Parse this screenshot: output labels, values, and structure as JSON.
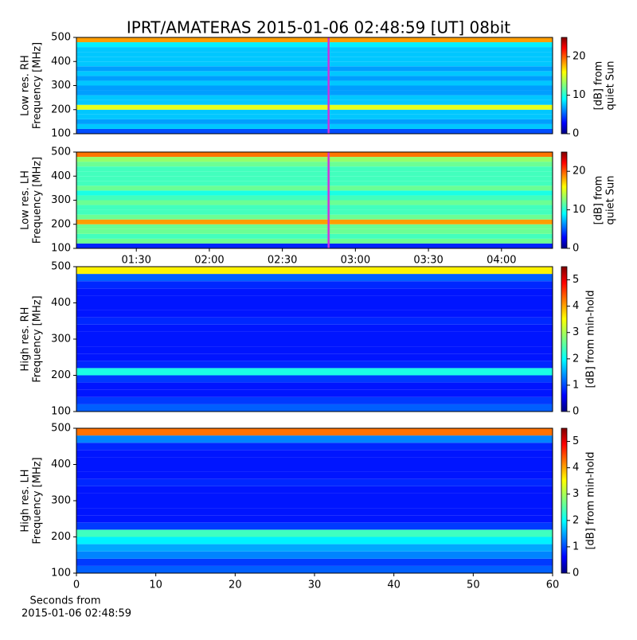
{
  "title": "IPRT/AMATERAS 2015-01-06 02:48:59 [UT]   08bit",
  "xlabel": [
    "Seconds from",
    "2015-01-06 02:48:59"
  ],
  "chart_data": [
    {
      "type": "heatmap",
      "ylabel": [
        "Low res. RH",
        "Frequency [MHz]"
      ],
      "ylim": [
        100,
        500
      ],
      "yticks": [
        100,
        200,
        300,
        400,
        500
      ],
      "ybins": [
        100,
        120,
        140,
        160,
        180,
        200,
        220,
        240,
        260,
        280,
        300,
        320,
        340,
        360,
        380,
        400,
        420,
        440,
        460,
        480,
        500
      ],
      "values": [
        5,
        8,
        7,
        8,
        8,
        15,
        8,
        8,
        7,
        7,
        8,
        7,
        8,
        7,
        8,
        8,
        8,
        8,
        9,
        18
      ],
      "xlim": [
        65.4,
        261
      ],
      "marker_x": 168.98,
      "marker_color": "#cc33dd",
      "clim": [
        0,
        25
      ],
      "cticks": [
        0,
        10,
        20
      ],
      "colorbar_label": [
        "[dB] from",
        "quiet Sun"
      ]
    },
    {
      "type": "heatmap",
      "ylabel": [
        "Low res. LH",
        "Frequency [MHz]"
      ],
      "ylim": [
        100,
        500
      ],
      "yticks": [
        100,
        200,
        300,
        400,
        500
      ],
      "ybins": [
        100,
        120,
        140,
        160,
        180,
        200,
        220,
        240,
        260,
        280,
        300,
        320,
        340,
        360,
        380,
        400,
        420,
        440,
        460,
        480,
        500
      ],
      "values": [
        4,
        12,
        11,
        12,
        12,
        18,
        12,
        11,
        11,
        12,
        11,
        10,
        12,
        11,
        11,
        11,
        11,
        12,
        13,
        19
      ],
      "xlim": [
        65.4,
        261
      ],
      "xticks": [
        {
          "value": 90,
          "label": "01:30"
        },
        {
          "value": 120,
          "label": "02:00"
        },
        {
          "value": 150,
          "label": "02:30"
        },
        {
          "value": 180,
          "label": "03:00"
        },
        {
          "value": 210,
          "label": "03:30"
        },
        {
          "value": 240,
          "label": "04:00"
        }
      ],
      "marker_x": 168.98,
      "marker_color": "#cc33dd",
      "clim": [
        0,
        25
      ],
      "cticks": [
        0,
        10,
        20
      ],
      "colorbar_label": [
        "[dB] from",
        "quiet Sun"
      ]
    },
    {
      "type": "heatmap",
      "ylabel": [
        "High res. RH",
        "Frequency [MHz]"
      ],
      "ylim": [
        100,
        500
      ],
      "yticks": [
        100,
        200,
        300,
        400,
        500
      ],
      "ybins": [
        100,
        120,
        140,
        160,
        180,
        200,
        220,
        240,
        260,
        280,
        300,
        320,
        340,
        360,
        380,
        400,
        420,
        440,
        460,
        480,
        500
      ],
      "values": [
        1.2,
        1.0,
        0.8,
        0.8,
        1.0,
        2.2,
        0.9,
        0.8,
        0.8,
        0.8,
        0.8,
        0.8,
        0.9,
        0.8,
        0.8,
        0.8,
        0.8,
        0.9,
        1.2,
        3.5
      ],
      "xlim": [
        0,
        60
      ],
      "clim": [
        0,
        5.5
      ],
      "cticks": [
        0,
        1,
        2,
        3,
        4,
        5
      ],
      "colorbar_label": [
        "[dB] from min-hold"
      ]
    },
    {
      "type": "heatmap",
      "ylabel": [
        "High res. LH",
        "Frequency [MHz]"
      ],
      "ylim": [
        100,
        500
      ],
      "yticks": [
        100,
        200,
        300,
        400,
        500
      ],
      "ybins": [
        100,
        120,
        140,
        160,
        180,
        200,
        220,
        240,
        260,
        280,
        300,
        320,
        340,
        360,
        380,
        400,
        420,
        440,
        460,
        480,
        500
      ],
      "values": [
        1.2,
        1.0,
        1.4,
        1.6,
        2.0,
        2.4,
        1.0,
        0.8,
        0.8,
        0.8,
        0.8,
        0.8,
        0.9,
        0.8,
        0.8,
        0.8,
        0.8,
        0.9,
        1.4,
        4.2
      ],
      "xlim": [
        0,
        60
      ],
      "xticks": [
        0,
        10,
        20,
        30,
        40,
        50,
        60
      ],
      "clim": [
        0,
        5.5
      ],
      "cticks": [
        0,
        1,
        2,
        3,
        4,
        5
      ],
      "colorbar_label": [
        "[dB] from min-hold"
      ]
    }
  ]
}
